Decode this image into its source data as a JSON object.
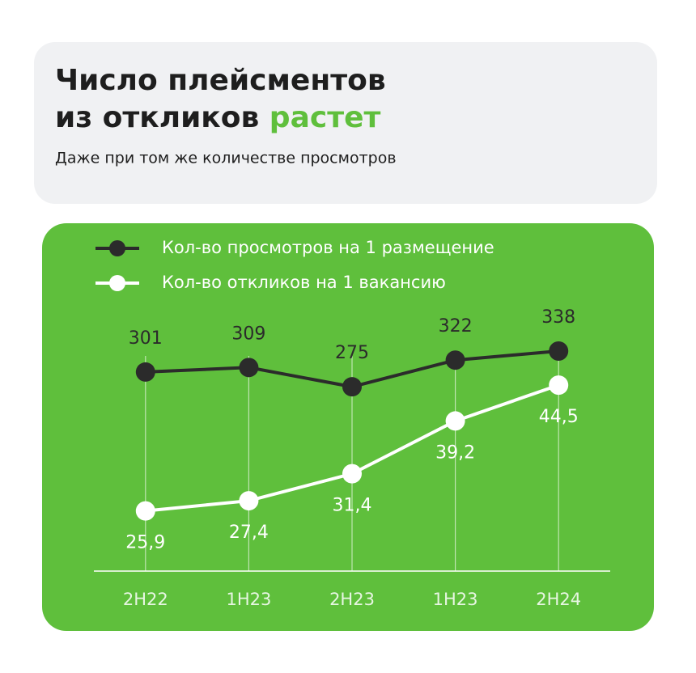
{
  "chart_data": {
    "type": "line",
    "title_lines": [
      "Число плейсментов",
      "из откликов"
    ],
    "title_highlight": "растет",
    "subtitle": "Даже при том же количестве просмотров",
    "categories": [
      "2H22",
      "1H23",
      "2H23",
      "1H23",
      "2H24"
    ],
    "series": [
      {
        "name": "Кол-во просмотров на 1 размещение",
        "color": "#2b2b2b",
        "values": [
          301,
          309,
          275,
          322,
          338
        ]
      },
      {
        "name": "Кол-во откликов на 1 вакансию",
        "color": "#ffffff",
        "axis": "y2",
        "values": [
          25.9,
          27.4,
          31.4,
          39.2,
          44.5
        ],
        "value_labels": [
          "25,9",
          "27,4",
          "31,4",
          "39,2",
          "44,5"
        ]
      }
    ],
    "ylim": [
      -50,
      415
    ],
    "y2lim": [
      17,
      56
    ],
    "highlight_color": "#5fbf3c",
    "panel_color": "#5fbf3c"
  }
}
